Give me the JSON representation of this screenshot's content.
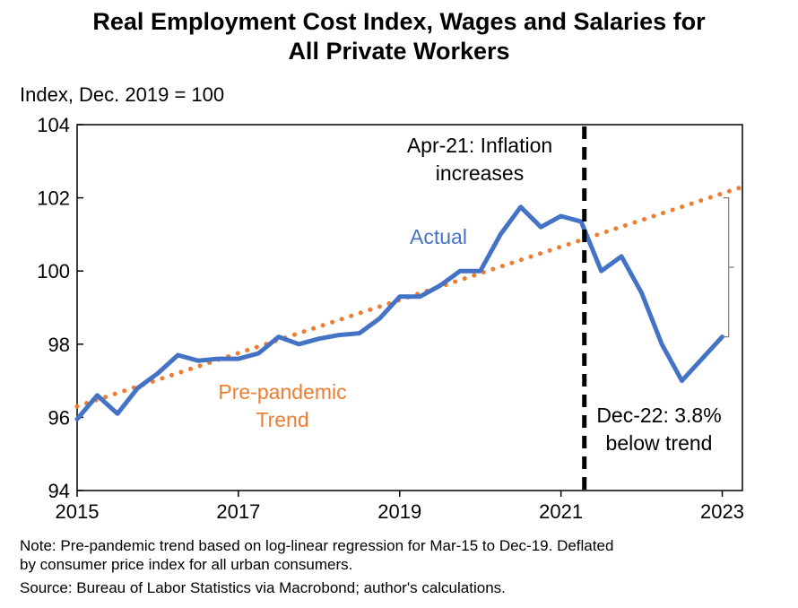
{
  "chart_data": {
    "type": "line",
    "title_lines": [
      "Real Employment  Cost Index, Wages and Salaries for",
      "All Private Workers"
    ],
    "ylabel": "Index, Dec. 2019 = 100",
    "xlabel": "",
    "x_ticks": [
      "2015",
      "2017",
      "2019",
      "2021",
      "2023"
    ],
    "y_ticks": [
      "94",
      "96",
      "98",
      "100",
      "102",
      "104"
    ],
    "xlim": [
      2015.0,
      2023.25
    ],
    "ylim": [
      94,
      104
    ],
    "grid": false,
    "series": [
      {
        "name": "Actual",
        "color": "#4472C4",
        "style": "solid",
        "x": [
          2015.0,
          2015.25,
          2015.5,
          2015.75,
          2016.0,
          2016.25,
          2016.5,
          2016.75,
          2017.0,
          2017.25,
          2017.5,
          2017.75,
          2018.0,
          2018.25,
          2018.5,
          2018.75,
          2019.0,
          2019.25,
          2019.5,
          2019.75,
          2020.0,
          2020.25,
          2020.5,
          2020.75,
          2021.0,
          2021.25,
          2021.5,
          2021.75,
          2022.0,
          2022.25,
          2022.5,
          2022.75,
          2023.0
        ],
        "y": [
          95.95,
          96.6,
          96.1,
          96.8,
          97.2,
          97.7,
          97.55,
          97.6,
          97.6,
          97.75,
          98.2,
          98.0,
          98.15,
          98.25,
          98.3,
          98.7,
          99.3,
          99.3,
          99.6,
          100.0,
          100.0,
          101.0,
          101.75,
          101.2,
          101.5,
          101.35,
          100.0,
          100.4,
          99.4,
          98.0,
          97.0,
          97.6,
          98.2
        ]
      },
      {
        "name": "Pre-pandemic Trend",
        "color": "#ED7D31",
        "style": "dotted",
        "x": [
          2015.0,
          2023.25
        ],
        "y": [
          96.3,
          102.3
        ]
      }
    ],
    "annotations": [
      {
        "id": "actual",
        "text": "Actual",
        "color": "#4472C4"
      },
      {
        "id": "trend",
        "lines": [
          "Pre-pandemic",
          "Trend"
        ],
        "color": "#ED7D31"
      },
      {
        "id": "inflation",
        "lines": [
          "Apr-21: Inflation",
          "increases"
        ],
        "color": "#000000"
      },
      {
        "id": "gap",
        "lines": [
          "Dec-22: 3.8%",
          "below trend"
        ],
        "color": "#000000"
      }
    ],
    "vline": {
      "x": 2021.29,
      "style": "dashed",
      "color": "#000000"
    },
    "bracket": {
      "x": 2023.08,
      "y_top": 102.0,
      "y_bottom": 98.2
    }
  },
  "notes": [
    "Note: Pre-pandemic trend based on log-linear regression for Mar-15 to Dec-19. Deflated",
    "by consumer price index for all urban consumers.",
    "Source: Bureau of Labor Statistics via Macrobond; author's calculations."
  ]
}
